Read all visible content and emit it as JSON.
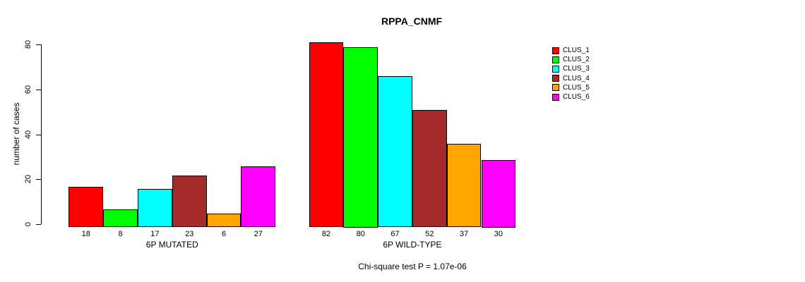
{
  "page": {
    "background_color": "#ffffff"
  },
  "chart_data": {
    "type": "bar",
    "title": "RPPA_CNMF",
    "xlabel": "",
    "ylabel": "number of cases",
    "ylim": [
      0,
      80
    ],
    "yticks": [
      0,
      20,
      40,
      60,
      80
    ],
    "grid": false,
    "legend_position": "right",
    "categories": [
      "6P MUTATED",
      "6P WILD-TYPE"
    ],
    "series": [
      {
        "name": "CLUS_1",
        "color": "#FF0000",
        "values": [
          18,
          82
        ]
      },
      {
        "name": "CLUS_2",
        "color": "#00FF00",
        "values": [
          8,
          80
        ]
      },
      {
        "name": "CLUS_3",
        "color": "#00FFFF",
        "values": [
          17,
          67
        ]
      },
      {
        "name": "CLUS_4",
        "color": "#A52A2A",
        "values": [
          23,
          52
        ]
      },
      {
        "name": "CLUS_5",
        "color": "#FFA500",
        "values": [
          6,
          37
        ]
      },
      {
        "name": "CLUS_6",
        "color": "#FF00FF",
        "values": [
          27,
          30
        ]
      }
    ],
    "bar_value_labels": {
      "6P MUTATED": [
        18,
        8,
        17,
        23,
        6,
        27
      ],
      "6P WILD-TYPE": [
        82,
        80,
        67,
        52,
        37,
        30
      ]
    },
    "annotation": "Chi-square test P = 1.07e-06"
  }
}
